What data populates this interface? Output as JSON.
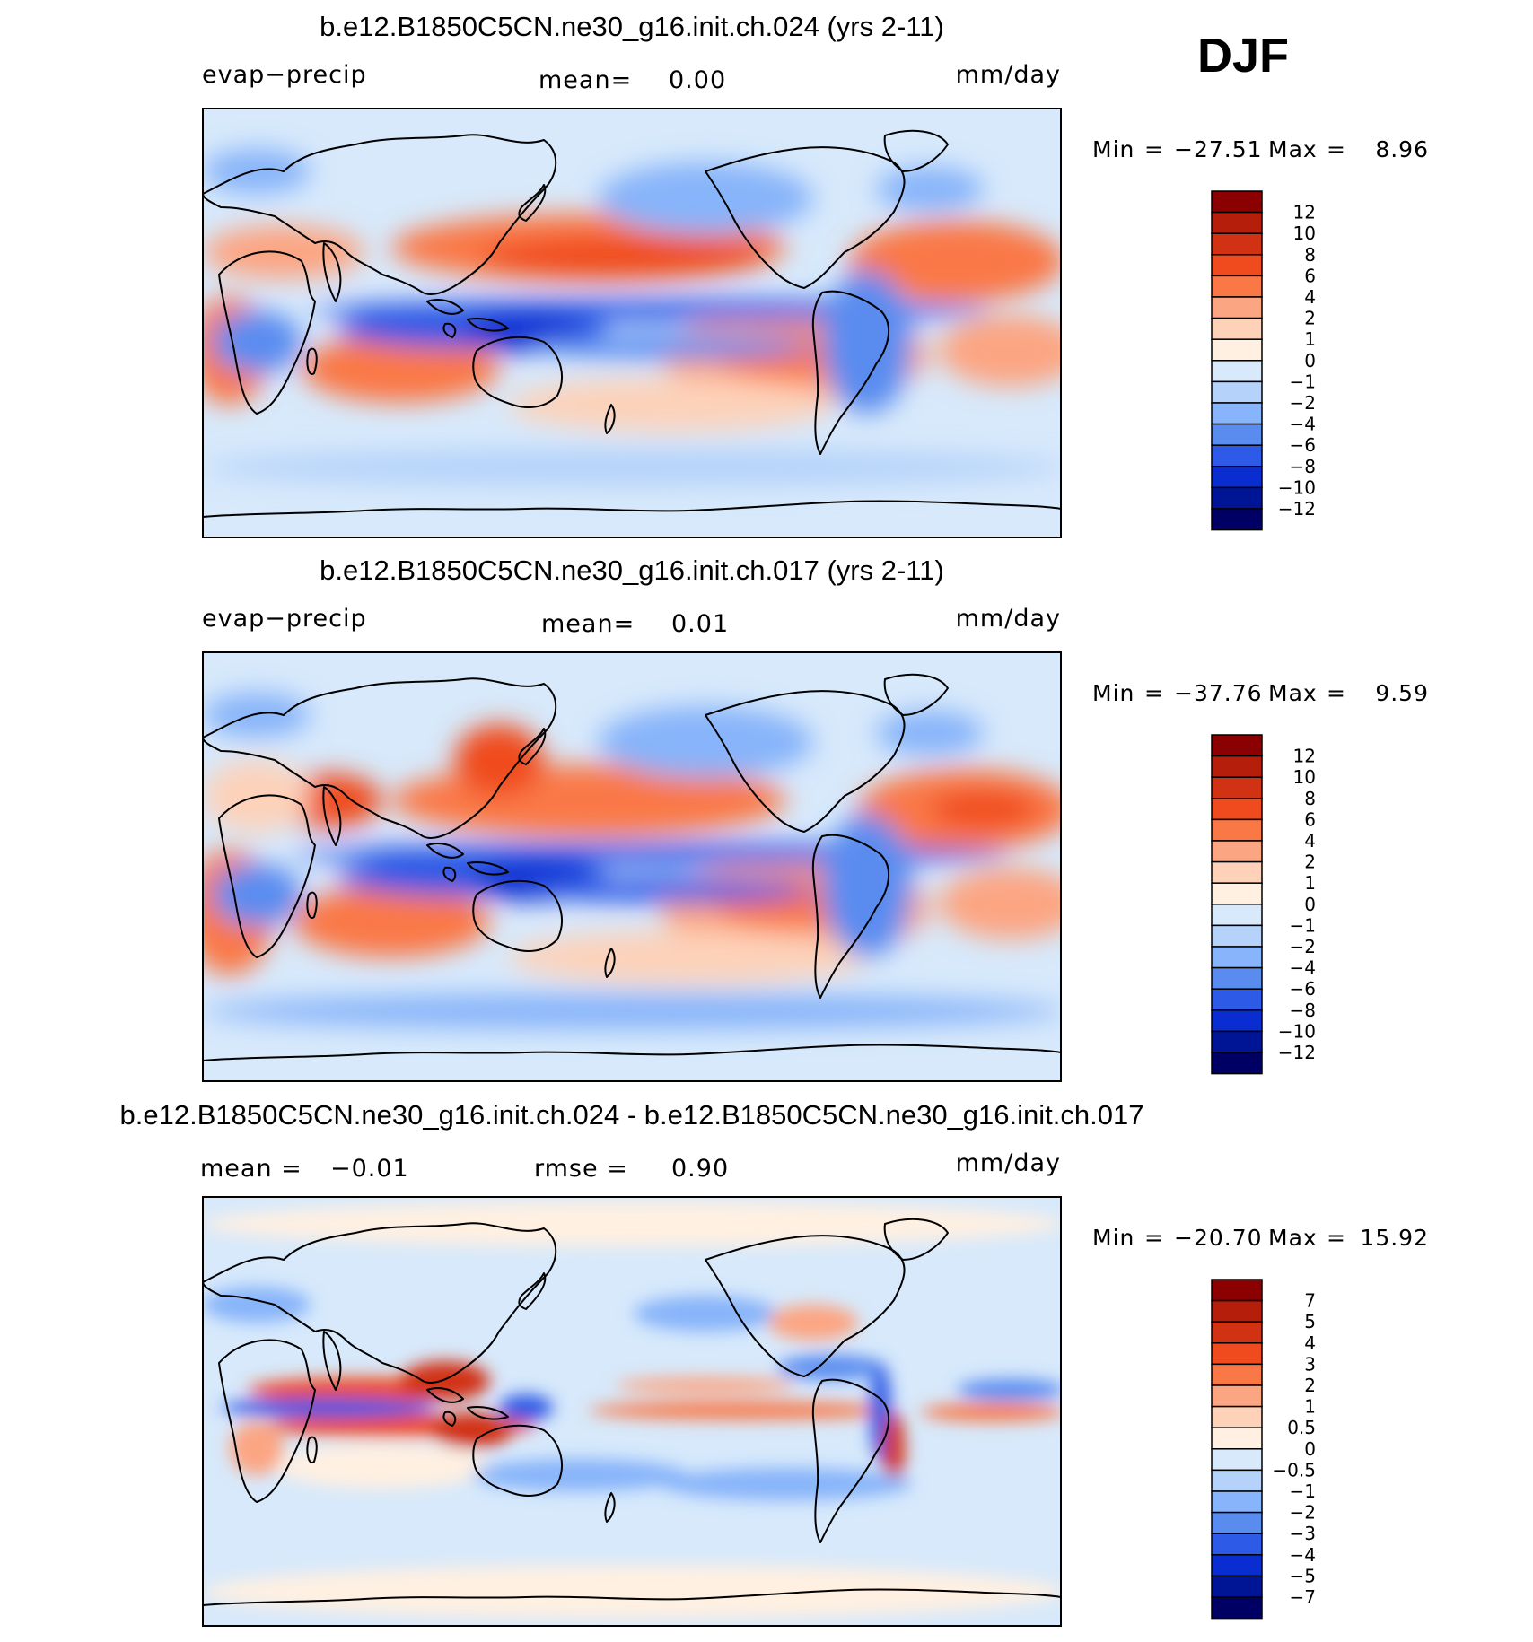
{
  "season": "DJF",
  "panels": [
    {
      "title": "b.e12.B1850C5CN.ne30_g16.init.ch.024 (yrs 2-11)",
      "left_label": "evap−precip",
      "center_label": "mean=",
      "center_value": "0.00",
      "units": "mm/day",
      "min_label": "Min",
      "min_value": "−27.51",
      "max_label": "Max",
      "max_value": "8.96",
      "colorbar_labels": [
        "12",
        "10",
        "8",
        "6",
        "4",
        "2",
        "1",
        "0",
        "−1",
        "−2",
        "−4",
        "−6",
        "−8",
        "−10",
        "−12"
      ]
    },
    {
      "title": "b.e12.B1850C5CN.ne30_g16.init.ch.017 (yrs 2-11)",
      "left_label": "evap−precip",
      "center_label": "mean=",
      "center_value": "0.01",
      "units": "mm/day",
      "min_label": "Min",
      "min_value": "−37.76",
      "max_label": "Max",
      "max_value": "9.59",
      "colorbar_labels": [
        "12",
        "10",
        "8",
        "6",
        "4",
        "2",
        "1",
        "0",
        "−1",
        "−2",
        "−4",
        "−6",
        "−8",
        "−10",
        "−12"
      ]
    },
    {
      "title": "b.e12.B1850C5CN.ne30_g16.init.ch.024 - b.e12.B1850C5CN.ne30_g16.init.ch.017",
      "left_label": "mean =",
      "left_value": "−0.01",
      "center_label": "rmse =",
      "center_value": "0.90",
      "units": "mm/day",
      "min_label": "Min",
      "min_value": "−20.70",
      "max_label": "Max",
      "max_value": "15.92",
      "colorbar_labels": [
        "7",
        "5",
        "4",
        "3",
        "2",
        "1",
        "0.5",
        "0",
        "−0.5",
        "−1",
        "−2",
        "−3",
        "−4",
        "−5",
        "−7"
      ]
    }
  ],
  "colorbar_colors": [
    "#8b0000",
    "#b41e0a",
    "#d23214",
    "#f04b1e",
    "#fa7846",
    "#fca582",
    "#fdd2b9",
    "#fff0e1",
    "#d7e9fb",
    "#b4d2fa",
    "#87b4fa",
    "#5a8cf0",
    "#2d5ae6",
    "#0a2dd2",
    "#001496",
    "#000064"
  ],
  "chart_data": [
    {
      "type": "heatmap",
      "title": "b.e12.B1850C5CN.ne30_g16.init.ch.024 (yrs 2-11)",
      "variable": "evap−precip",
      "units": "mm/day",
      "mean": 0.0,
      "min": -27.51,
      "max": 8.96,
      "levels": [
        -12,
        -10,
        -8,
        -6,
        -4,
        -2,
        -1,
        0,
        1,
        2,
        4,
        6,
        8,
        10,
        12
      ]
    },
    {
      "type": "heatmap",
      "title": "b.e12.B1850C5CN.ne30_g16.init.ch.017 (yrs 2-11)",
      "variable": "evap−precip",
      "units": "mm/day",
      "mean": 0.01,
      "min": -37.76,
      "max": 9.59,
      "levels": [
        -12,
        -10,
        -8,
        -6,
        -4,
        -2,
        -1,
        0,
        1,
        2,
        4,
        6,
        8,
        10,
        12
      ]
    },
    {
      "type": "heatmap",
      "title": "b.e12.B1850C5CN.ne30_g16.init.ch.024 - b.e12.B1850C5CN.ne30_g16.init.ch.017",
      "units": "mm/day",
      "mean": -0.01,
      "rmse": 0.9,
      "min": -20.7,
      "max": 15.92,
      "levels": [
        -7,
        -5,
        -4,
        -3,
        -2,
        -1,
        -0.5,
        0,
        0.5,
        1,
        2,
        3,
        4,
        5,
        7
      ]
    }
  ]
}
